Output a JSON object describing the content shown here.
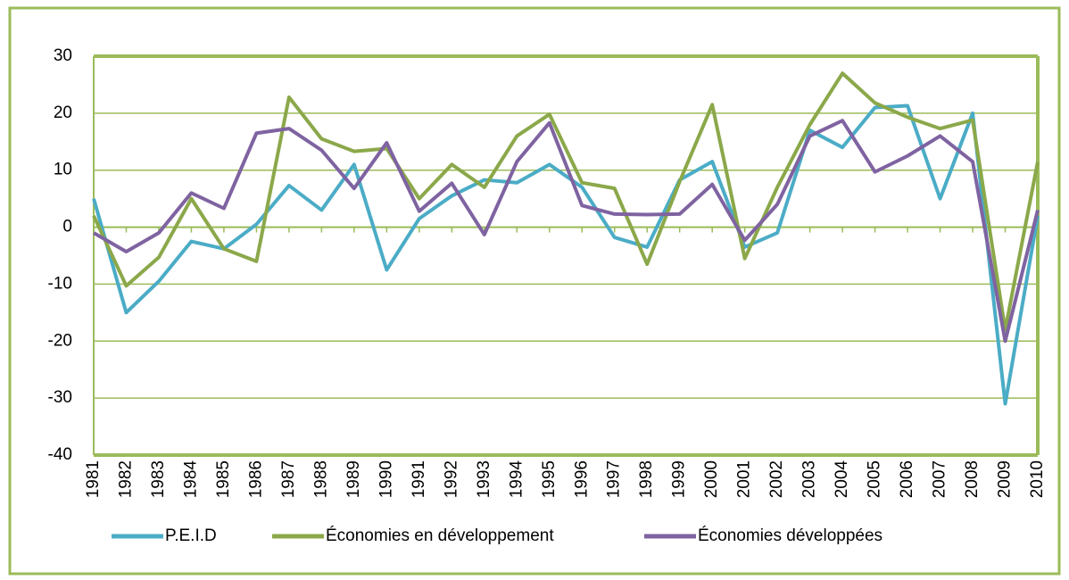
{
  "chart_data": {
    "type": "line",
    "categories": [
      "1981",
      "1982",
      "1983",
      "1984",
      "1985",
      "1986",
      "1987",
      "1988",
      "1989",
      "1990",
      "1991",
      "1992",
      "1993",
      "1994",
      "1995",
      "1996",
      "1997",
      "1998",
      "1999",
      "2000",
      "2001",
      "2002",
      "2003",
      "2004",
      "2005",
      "2006",
      "2007",
      "2008",
      "2009",
      "2010"
    ],
    "series": [
      {
        "name": "P.E.I.D",
        "color": "#4bacc6",
        "values": [
          5,
          -15,
          -9.5,
          -2.5,
          -3.8,
          0.5,
          7.3,
          3,
          11,
          -7.5,
          1.5,
          5.5,
          8.3,
          7.8,
          11,
          7,
          -1.8,
          -3.5,
          8.3,
          11.5,
          -3.5,
          -1,
          17,
          14,
          21,
          21.3,
          5,
          20,
          -31,
          2
        ]
      },
      {
        "name": "Économies en développement",
        "color": "#8ba84a",
        "values": [
          2,
          -10.3,
          -5.3,
          5,
          -3.8,
          -6,
          22.8,
          15.5,
          13.3,
          13.8,
          5,
          11,
          7,
          16,
          19.8,
          7.8,
          6.8,
          -6.5,
          8,
          21.5,
          -5.5,
          7,
          18,
          27,
          21.8,
          19.3,
          17.3,
          18.8,
          -18,
          11.5
        ]
      },
      {
        "name": "Économies développées",
        "color": "#7f63a1",
        "values": [
          -1,
          -4.3,
          -1,
          6,
          3.3,
          16.5,
          17.3,
          13.5,
          6.8,
          14.8,
          2.8,
          7.7,
          -1.3,
          11.5,
          18.3,
          3.8,
          2.3,
          2.2,
          2.3,
          7.5,
          -2.3,
          4,
          16,
          18.7,
          9.7,
          12.5,
          16,
          11.5,
          -20,
          3
        ]
      }
    ],
    "ylim": [
      -40,
      30
    ],
    "yticks": [
      -40,
      -30,
      -20,
      -10,
      0,
      10,
      20,
      30
    ],
    "grid": true,
    "grid_color": "#9bbb59",
    "legend": "bottom"
  }
}
